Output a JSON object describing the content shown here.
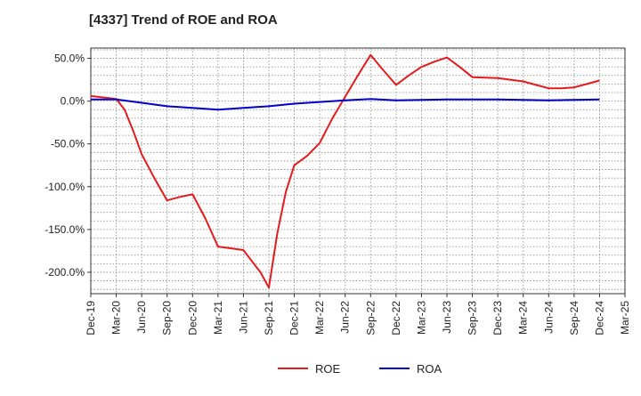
{
  "chart_data": {
    "type": "line",
    "title": "[4337]  Trend of ROE and ROA",
    "xlabel": "",
    "ylabel": "",
    "x_tick_labels": [
      "Dec-19",
      "Mar-20",
      "Jun-20",
      "Sep-20",
      "Dec-20",
      "Mar-21",
      "Jun-21",
      "Sep-21",
      "Dec-21",
      "Mar-22",
      "Jun-22",
      "Sep-22",
      "Dec-22",
      "Mar-23",
      "Jun-23",
      "Sep-23",
      "Dec-23",
      "Mar-24",
      "Jun-24",
      "Sep-24",
      "Dec-24",
      "Mar-25"
    ],
    "y_ticks": [
      50,
      0,
      -50,
      -100,
      -150,
      -200
    ],
    "y_tick_labels": [
      "50.0%",
      "0.0%",
      "-50.0%",
      "-100.0%",
      "-150.0%",
      "-200.0%"
    ],
    "ylim": [
      -225,
      62
    ],
    "grid": true,
    "legend_position": "bottom-center",
    "series": [
      {
        "name": "ROE",
        "color": "#e41a1c",
        "points": [
          [
            0,
            6
          ],
          [
            1,
            2.5
          ],
          [
            1.33,
            -10
          ],
          [
            1.67,
            -35
          ],
          [
            2,
            -62
          ],
          [
            2.5,
            -90
          ],
          [
            3,
            -116
          ],
          [
            3.5,
            -112
          ],
          [
            4,
            -109
          ],
          [
            4.5,
            -137
          ],
          [
            5,
            -170
          ],
          [
            5.5,
            -172
          ],
          [
            6,
            -174
          ],
          [
            6.33,
            -187
          ],
          [
            6.67,
            -200
          ],
          [
            7,
            -218
          ],
          [
            7.33,
            -155
          ],
          [
            7.67,
            -106
          ],
          [
            8,
            -75
          ],
          [
            8.5,
            -64
          ],
          [
            9,
            -49
          ],
          [
            9.5,
            -20
          ],
          [
            10,
            5
          ],
          [
            10.5,
            30
          ],
          [
            11,
            54
          ],
          [
            11.5,
            36
          ],
          [
            12,
            19
          ],
          [
            12.5,
            30
          ],
          [
            13,
            40
          ],
          [
            13.5,
            46
          ],
          [
            14,
            51
          ],
          [
            14.5,
            40
          ],
          [
            15,
            28
          ],
          [
            15.5,
            27.5
          ],
          [
            16,
            27
          ],
          [
            16.5,
            25
          ],
          [
            17,
            23
          ],
          [
            17.5,
            19
          ],
          [
            18,
            15
          ],
          [
            18.5,
            15
          ],
          [
            19,
            16
          ],
          [
            19.5,
            20
          ],
          [
            20,
            24
          ]
        ]
      },
      {
        "name": "ROA",
        "color": "#0000cc",
        "points": [
          [
            0,
            2
          ],
          [
            1,
            2
          ],
          [
            2,
            -2
          ],
          [
            3,
            -6
          ],
          [
            4,
            -8
          ],
          [
            5,
            -10
          ],
          [
            6,
            -8
          ],
          [
            7,
            -6
          ],
          [
            8,
            -3
          ],
          [
            9,
            -1
          ],
          [
            10,
            1
          ],
          [
            11,
            2.5
          ],
          [
            12,
            1
          ],
          [
            13,
            1.5
          ],
          [
            14,
            2
          ],
          [
            15,
            2
          ],
          [
            16,
            2
          ],
          [
            17,
            1.5
          ],
          [
            18,
            1
          ],
          [
            19,
            1.5
          ],
          [
            20,
            2
          ]
        ]
      }
    ]
  }
}
